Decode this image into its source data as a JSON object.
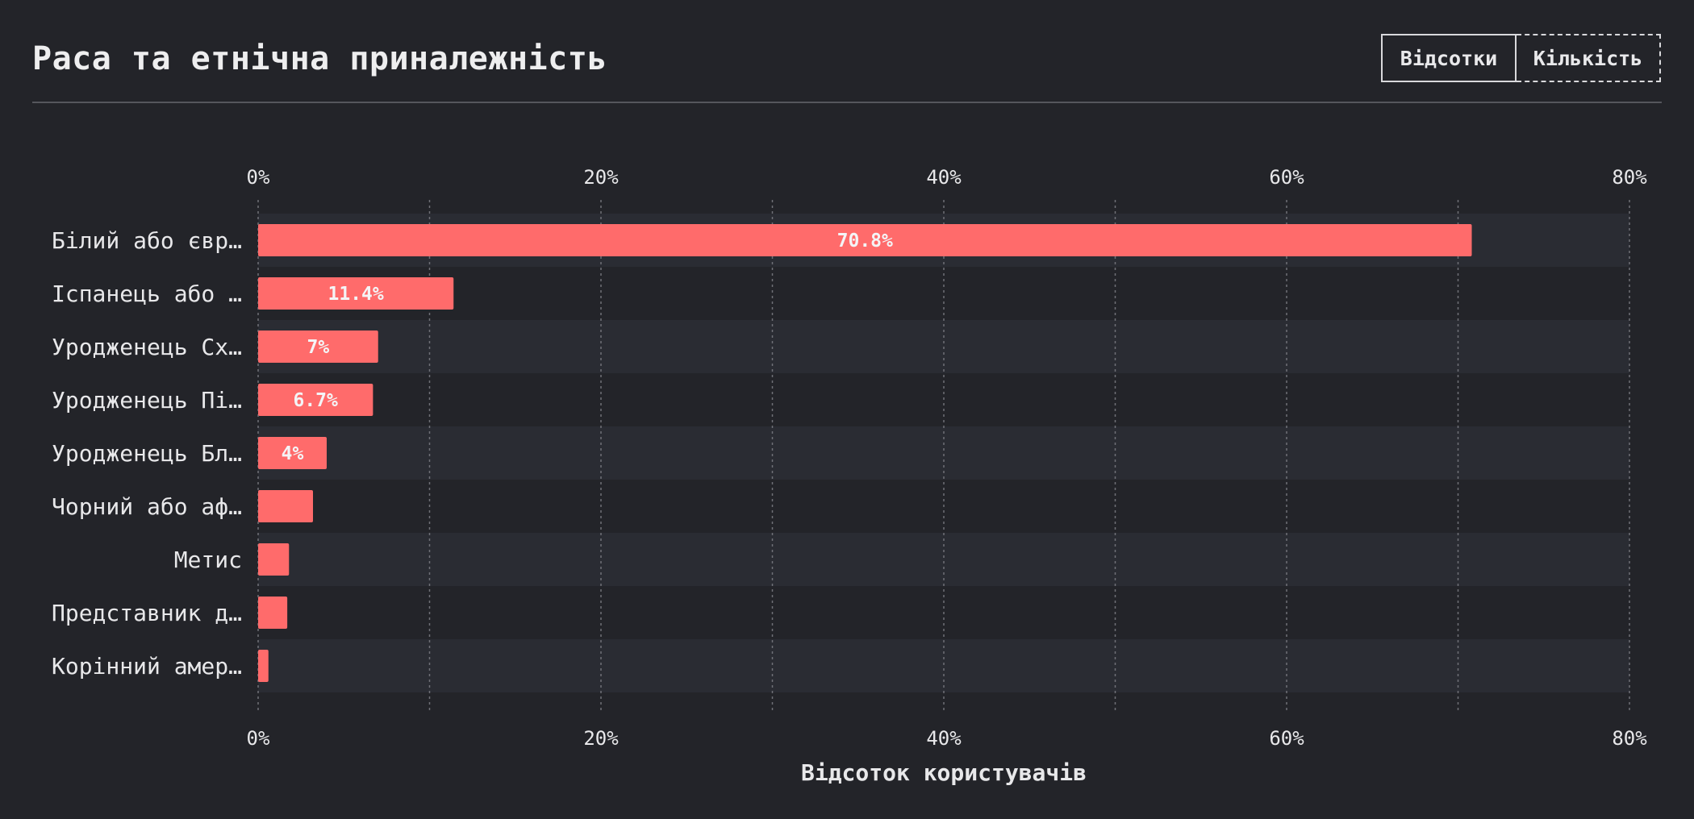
{
  "header": {
    "title": "Раса та етнічна приналежність"
  },
  "toggle": {
    "options": [
      "Відсотки",
      "Кількість"
    ],
    "selected": "Відсотки"
  },
  "colors": {
    "background": "#232429",
    "band": "#2a2c33",
    "bar": "#ff6b6b",
    "grid": "#6f7077",
    "text": "#e8e8ea"
  },
  "chart_data": {
    "type": "bar",
    "orientation": "horizontal",
    "title": "Раса та етнічна приналежність",
    "xlabel": "Відсоток користувачів",
    "ylabel": "",
    "xlim": [
      0,
      80
    ],
    "xticks": [
      0,
      20,
      40,
      60,
      80
    ],
    "xtick_labels": [
      "0%",
      "20%",
      "40%",
      "60%",
      "80%"
    ],
    "minor_gridlines": [
      10,
      30,
      50,
      70
    ],
    "grid": true,
    "categories": [
      "Білий або євр…",
      "Іспанець або …",
      "Уродженець Сх…",
      "Уродженець Пі…",
      "Уродженець Бл…",
      "Чорний або аф…",
      "Метис",
      "Представник д…",
      "Корінний амер…"
    ],
    "values": [
      70.8,
      11.4,
      7,
      6.7,
      4,
      3.2,
      1.8,
      1.7,
      0.6
    ],
    "data_labels": [
      "70.8%",
      "11.4%",
      "7%",
      "6.7%",
      "4%",
      "",
      "",
      "",
      ""
    ]
  }
}
